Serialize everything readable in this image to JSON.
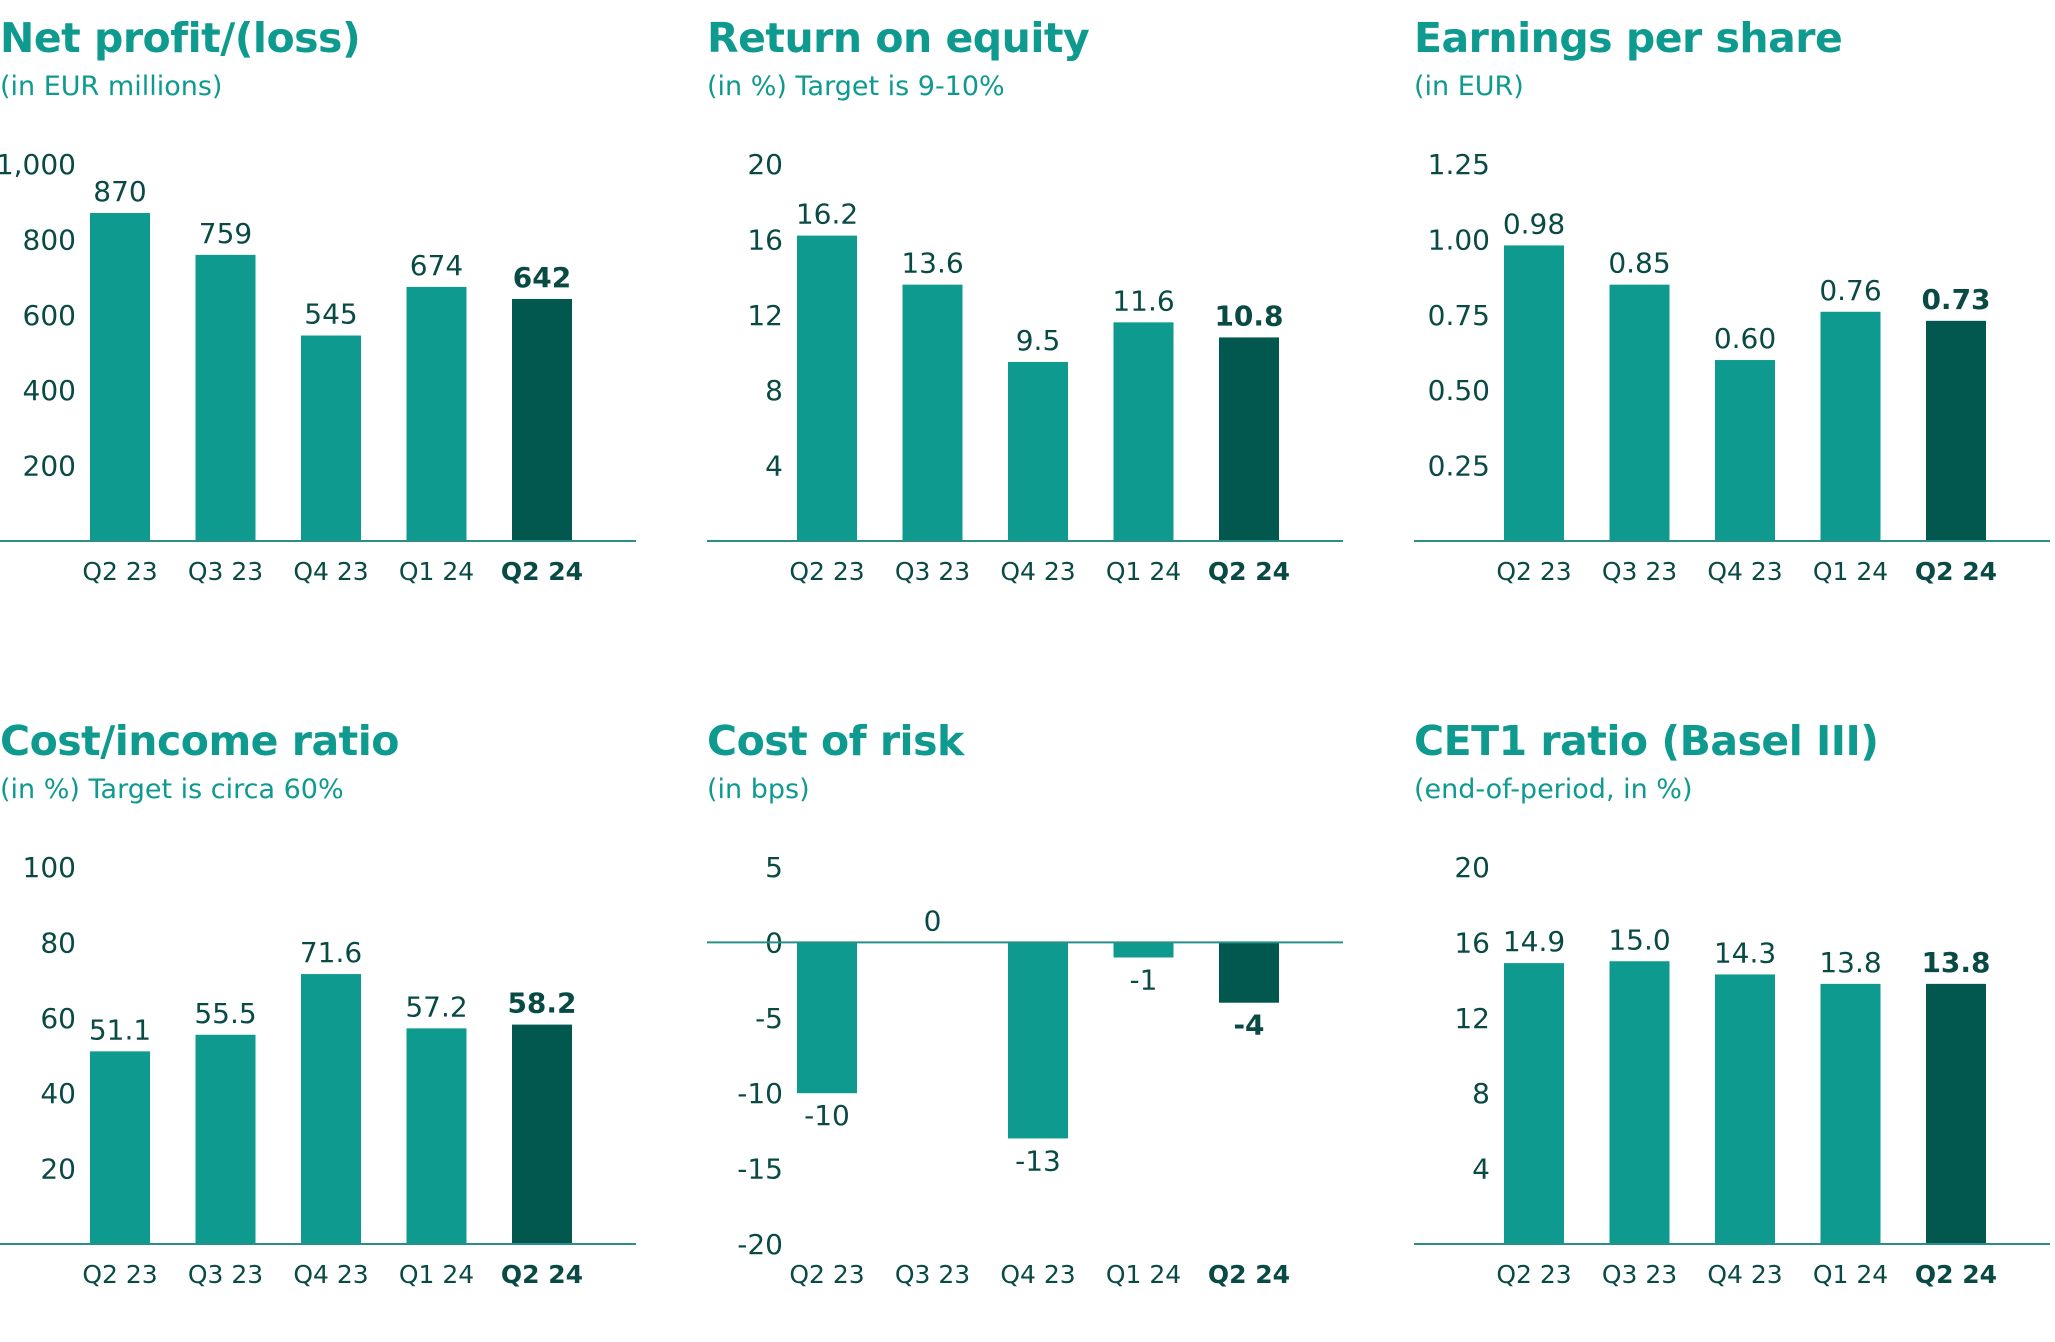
{
  "colors": {
    "bar": "#0e9a8f",
    "highlight": "#02584f",
    "title": "#0e9a8f",
    "text": "#0a4a45",
    "axis": "#2a8f87"
  },
  "chart_data": [
    {
      "type": "bar",
      "title": "Net profit/(loss)",
      "subtitle": "(in EUR millions)",
      "categories": [
        "Q2 23",
        "Q3 23",
        "Q4 23",
        "Q1 24",
        "Q2 24"
      ],
      "values": [
        870,
        759,
        545,
        674,
        642
      ],
      "value_labels": [
        "870",
        "759",
        "545",
        "674",
        "642"
      ],
      "ylim": [
        0,
        1000
      ],
      "yticks": [
        "200",
        "400",
        "600",
        "800",
        "1,000"
      ],
      "ytick_values": [
        200,
        400,
        600,
        800,
        1000
      ],
      "highlight_index": 4,
      "grid": false
    },
    {
      "type": "bar",
      "title": "Return on equity",
      "subtitle": "(in %) Target is 9-10%",
      "categories": [
        "Q2 23",
        "Q3 23",
        "Q4 23",
        "Q1 24",
        "Q2 24"
      ],
      "values": [
        16.2,
        13.6,
        9.5,
        11.6,
        10.8
      ],
      "value_labels": [
        "16.2",
        "13.6",
        "9.5",
        "11.6",
        "10.8"
      ],
      "ylim": [
        0,
        20
      ],
      "yticks": [
        "4",
        "8",
        "12",
        "16",
        "20"
      ],
      "ytick_values": [
        4,
        8,
        12,
        16,
        20
      ],
      "highlight_index": 4,
      "grid": false
    },
    {
      "type": "bar",
      "title": "Earnings per share",
      "subtitle": "(in EUR)",
      "categories": [
        "Q2 23",
        "Q3 23",
        "Q4 23",
        "Q1 24",
        "Q2 24"
      ],
      "values": [
        0.98,
        0.85,
        0.6,
        0.76,
        0.73
      ],
      "value_labels": [
        "0.98",
        "0.85",
        "0.60",
        "0.76",
        "0.73"
      ],
      "ylim": [
        0,
        1.25
      ],
      "yticks": [
        "0.25",
        "0.50",
        "0.75",
        "1.00",
        "1.25"
      ],
      "ytick_values": [
        0.25,
        0.5,
        0.75,
        1.0,
        1.25
      ],
      "highlight_index": 4,
      "grid": false
    },
    {
      "type": "bar",
      "title": "Cost/income ratio",
      "subtitle": "(in %) Target is circa 60%",
      "categories": [
        "Q2 23",
        "Q3 23",
        "Q4 23",
        "Q1 24",
        "Q2 24"
      ],
      "values": [
        51.1,
        55.5,
        71.6,
        57.2,
        58.2
      ],
      "value_labels": [
        "51.1",
        "55.5",
        "71.6",
        "57.2",
        "58.2"
      ],
      "ylim": [
        0,
        100
      ],
      "yticks": [
        "20",
        "40",
        "60",
        "80",
        "100"
      ],
      "ytick_values": [
        20,
        40,
        60,
        80,
        100
      ],
      "highlight_index": 4,
      "grid": false
    },
    {
      "type": "bar",
      "title": "Cost of risk",
      "subtitle": "(in bps)",
      "categories": [
        "Q2 23",
        "Q3 23",
        "Q4 23",
        "Q1 24",
        "Q2 24"
      ],
      "values": [
        -10,
        0,
        -13,
        -1,
        -4
      ],
      "value_labels": [
        "-10",
        "0",
        "-13",
        "-1",
        "-4"
      ],
      "ylim": [
        -20,
        5
      ],
      "yticks": [
        "-20",
        "-15",
        "-10",
        "-5",
        "0",
        "5"
      ],
      "ytick_values": [
        -20,
        -15,
        -10,
        -5,
        0,
        5
      ],
      "highlight_index": 4,
      "grid": false
    },
    {
      "type": "bar",
      "title": "CET1 ratio (Basel III)",
      "subtitle": "(end-of-period, in %)",
      "categories": [
        "Q2 23",
        "Q3 23",
        "Q4 23",
        "Q1 24",
        "Q2 24"
      ],
      "values": [
        14.9,
        15.0,
        14.3,
        13.8,
        13.8
      ],
      "value_labels": [
        "14.9",
        "15.0",
        "14.3",
        "13.8",
        "13.8"
      ],
      "ylim": [
        0,
        20
      ],
      "yticks": [
        "4",
        "8",
        "12",
        "16",
        "20"
      ],
      "ytick_values": [
        4,
        8,
        12,
        16,
        20
      ],
      "highlight_index": 4,
      "grid": false
    }
  ]
}
